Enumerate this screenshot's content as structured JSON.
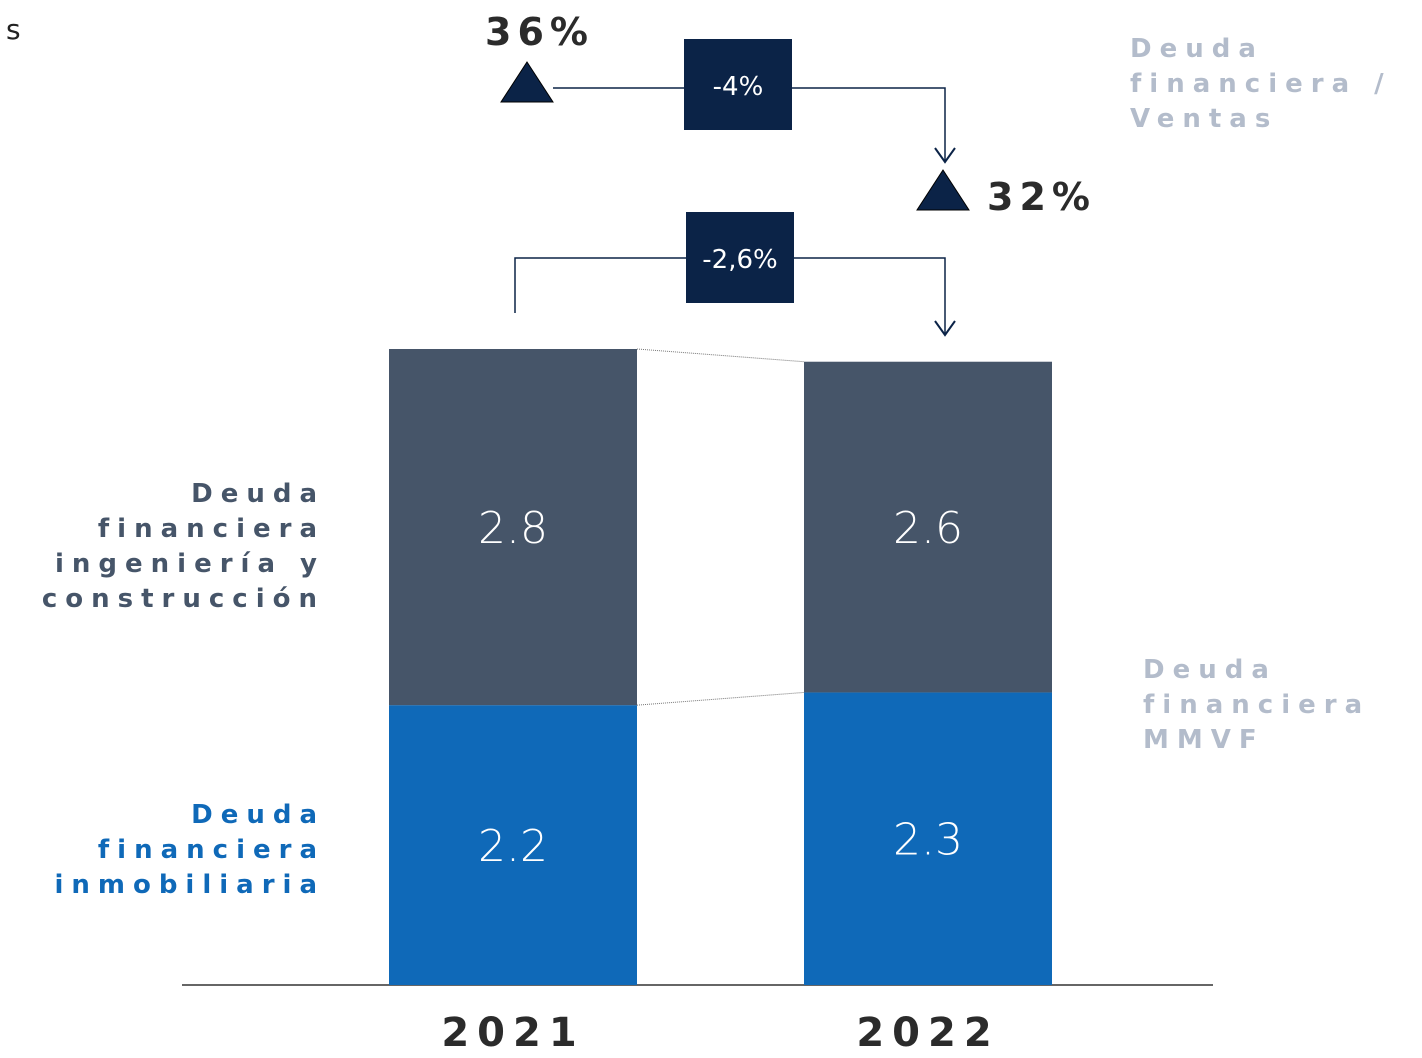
{
  "fragment": "s",
  "chart_data": {
    "type": "stacked_bar",
    "categories": [
      "2021",
      "2022"
    ],
    "series": [
      {
        "name": "Deuda financiera inmobiliaria",
        "color": "#0f69b8",
        "values": [
          2.2,
          2.3
        ]
      },
      {
        "name": "Deuda financiera ingeniería y construcción",
        "color": "#465569",
        "values": [
          2.8,
          2.6
        ]
      }
    ],
    "total_label": "Deuda financiera MMVF",
    "debt_change": {
      "value": -2.6,
      "label": "-2,6%"
    },
    "ratio": {
      "name": "Deuda financiera / Ventas",
      "values": [
        36,
        32
      ],
      "value_labels": [
        "36%",
        "32%"
      ],
      "change": {
        "value": -4,
        "label": "-4%"
      }
    }
  }
}
